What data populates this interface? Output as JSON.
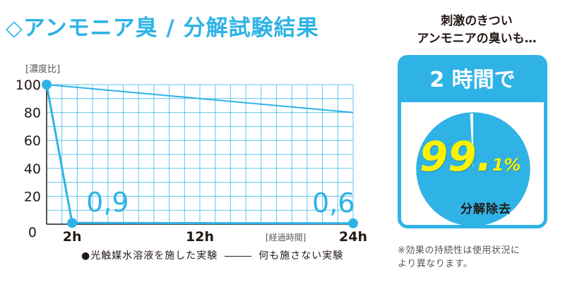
{
  "page": {
    "title": "◇アンモニア臭 / 分解試験結果"
  },
  "chart_data": {
    "type": "line",
    "ylabel": "[濃度比]",
    "xlabel": "[経過時間]",
    "yticks": [
      "0",
      "20",
      "40",
      "60",
      "80",
      "100"
    ],
    "xticks": [
      {
        "label": "2h",
        "value": 2
      },
      {
        "label": "12h",
        "value": 12
      },
      {
        "label": "24h",
        "value": 24
      }
    ],
    "xlim": [
      0,
      24
    ],
    "ylim": [
      0,
      100
    ],
    "grid": true,
    "series": [
      {
        "name": "光触媒水溶液を施した実験",
        "color": "#2fb3e6",
        "marker": "circle",
        "points": [
          {
            "x": 0,
            "y": 100,
            "label": ""
          },
          {
            "x": 2,
            "y": 0.9,
            "label": "0,9"
          },
          {
            "x": 24,
            "y": 0.6,
            "label": "0,6"
          }
        ]
      },
      {
        "name": "何も施さない実験",
        "color": "#2fb3e6",
        "marker": "none",
        "points": [
          {
            "x": 0,
            "y": 100
          },
          {
            "x": 24,
            "y": 80
          }
        ]
      }
    ]
  },
  "legend": {
    "treated": "●光触媒水溶液を施した実験",
    "untreated": "何も施さない実験"
  },
  "panel": {
    "lead_line1": "刺激のきつい",
    "lead_line2": "アンモニアの臭いも…",
    "header": "2 時間で",
    "pie": {
      "value_main": "99.",
      "value_sub": "1%",
      "percent": 99.1
    },
    "caption": "分解除去",
    "accent_color": "#2fb3e6",
    "value_color": "#fff200"
  },
  "note": {
    "line1": "※効果の持続性は使用状況に",
    "line2": "より異なります。"
  }
}
